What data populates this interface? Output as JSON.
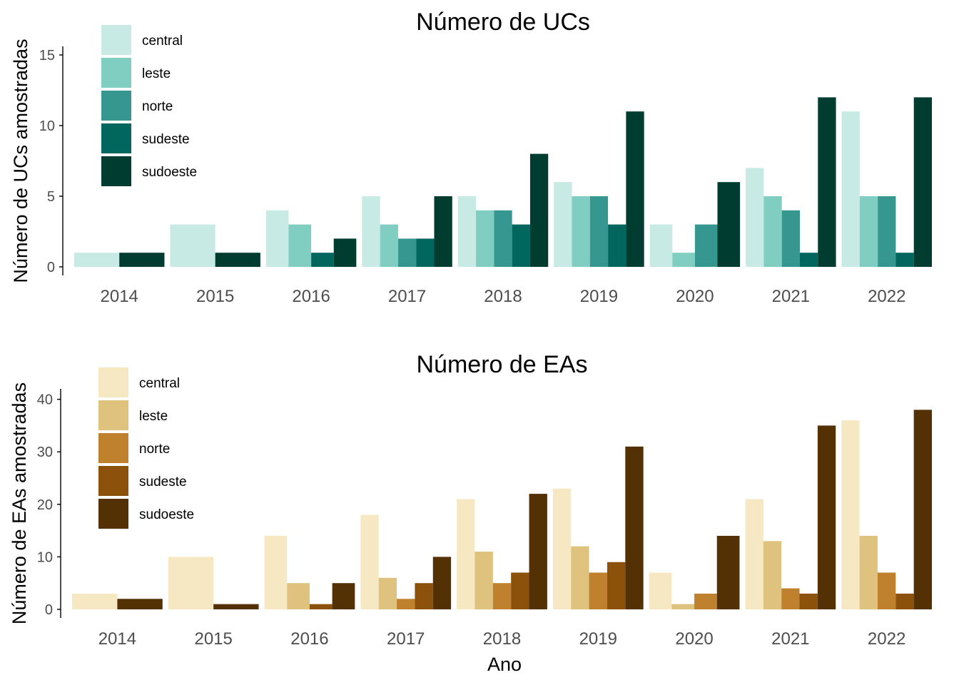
{
  "x_axis_label": "Ano",
  "chart_data": [
    {
      "type": "bar",
      "title": "Número de UCs",
      "ylabel": "Número de UCs amostradas",
      "xlabel": "",
      "ylim": [
        0,
        16
      ],
      "yticks": [
        0,
        5,
        10,
        15
      ],
      "categories": [
        "2014",
        "2015",
        "2016",
        "2017",
        "2018",
        "2019",
        "2020",
        "2021",
        "2022"
      ],
      "legend_position": "top-left",
      "grid": false,
      "series": [
        {
          "name": "central",
          "color": "#c7eae5",
          "values": [
            1,
            3,
            4,
            5,
            5,
            6,
            3,
            7,
            11
          ]
        },
        {
          "name": "leste",
          "color": "#80cdc1",
          "values": [
            null,
            null,
            3,
            3,
            4,
            5,
            1,
            5,
            5
          ]
        },
        {
          "name": "norte",
          "color": "#35978f",
          "values": [
            null,
            null,
            null,
            2,
            4,
            5,
            3,
            4,
            5
          ]
        },
        {
          "name": "sudeste",
          "color": "#01665e",
          "values": [
            null,
            null,
            1,
            2,
            3,
            3,
            null,
            1,
            1
          ]
        },
        {
          "name": "sudoeste",
          "color": "#003c30",
          "values": [
            1,
            1,
            2,
            5,
            8,
            11,
            6,
            12,
            12
          ]
        }
      ]
    },
    {
      "type": "bar",
      "title": "Número de EAs",
      "ylabel": "Número de EAs amostradas",
      "xlabel": "Ano",
      "ylim": [
        0,
        42
      ],
      "yticks": [
        0,
        10,
        20,
        30,
        40
      ],
      "categories": [
        "2014",
        "2015",
        "2016",
        "2017",
        "2018",
        "2019",
        "2020",
        "2021",
        "2022"
      ],
      "legend_position": "top-left",
      "grid": false,
      "series": [
        {
          "name": "central",
          "color": "#f6e8c3",
          "values": [
            3,
            10,
            14,
            18,
            21,
            23,
            7,
            21,
            36
          ]
        },
        {
          "name": "leste",
          "color": "#dfc27d",
          "values": [
            null,
            null,
            5,
            6,
            11,
            12,
            1,
            13,
            14
          ]
        },
        {
          "name": "norte",
          "color": "#bf812d",
          "values": [
            null,
            null,
            null,
            2,
            5,
            7,
            3,
            4,
            7
          ]
        },
        {
          "name": "sudeste",
          "color": "#8c510a",
          "values": [
            null,
            null,
            1,
            5,
            7,
            9,
            null,
            3,
            3
          ]
        },
        {
          "name": "sudoeste",
          "color": "#543005",
          "values": [
            2,
            1,
            5,
            10,
            22,
            31,
            14,
            35,
            38
          ]
        }
      ]
    }
  ]
}
